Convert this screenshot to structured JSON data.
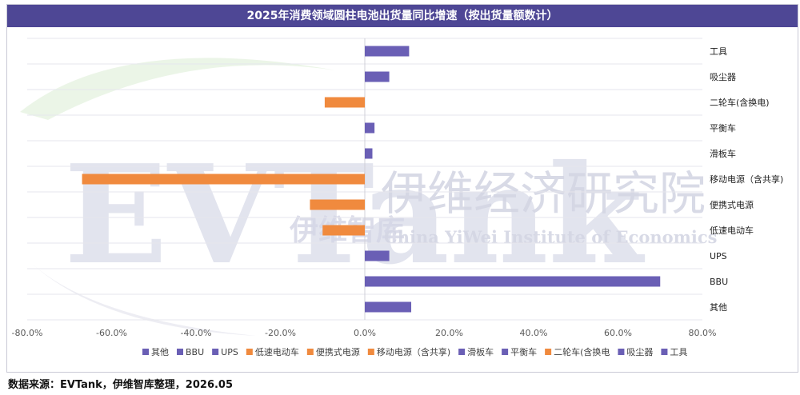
{
  "chart_title": "2025年消费领域圆柱电池出货量同比增速（按出货量额数计）",
  "footer": "数据来源：EVTank，伊维智库整理，2026.05",
  "watermark": {
    "logo": "EVTank",
    "cn": "伊维经济研究院",
    "en": "China YiWei Institute of Economics",
    "small_cn": "伊维智库"
  },
  "colors": {
    "title_bg": "#4e4795",
    "purple": "#6a5fb5",
    "orange": "#f08a3e",
    "grid": "#e6e6ec",
    "axis_text": "#595959"
  },
  "chart_data": {
    "type": "bar",
    "orientation": "horizontal",
    "title": "2025年消费领域圆柱电池出货量同比增速（按出货量额数计）",
    "categories": [
      "工具",
      "吸尘器",
      "二轮车(含换电)",
      "平衡车",
      "滑板车",
      "移动电源（含共享)",
      "便携式电源",
      "低速电动车",
      "UPS",
      "BBU",
      "其他"
    ],
    "values": [
      10.5,
      5.8,
      -9.5,
      2.3,
      1.8,
      -67.0,
      -13.0,
      -10.0,
      5.8,
      70.0,
      11.0
    ],
    "unit": "%",
    "xlim": [
      -80,
      80
    ],
    "x_ticks": [
      -80,
      -60,
      -40,
      -20,
      0,
      20,
      40,
      60,
      80
    ],
    "x_tick_labels": [
      "-80.0%",
      "-60.0%",
      "-40.0%",
      "-20.0%",
      "0.0%",
      "20.0%",
      "40.0%",
      "60.0%",
      "80.0%"
    ],
    "grid": true,
    "legend_position": "bottom",
    "legend": [
      {
        "label": "其他",
        "color": "#6a5fb5"
      },
      {
        "label": "BBU",
        "color": "#6a5fb5"
      },
      {
        "label": "UPS",
        "color": "#6a5fb5"
      },
      {
        "label": "低速电动车",
        "color": "#f08a3e"
      },
      {
        "label": "便携式电源",
        "color": "#f08a3e"
      },
      {
        "label": "移动电源（含共享)",
        "color": "#f08a3e"
      },
      {
        "label": "滑板车",
        "color": "#6a5fb5"
      },
      {
        "label": "平衡车",
        "color": "#6a5fb5"
      },
      {
        "label": "二轮车(含换电",
        "color": "#f08a3e"
      },
      {
        "label": "吸尘器",
        "color": "#6a5fb5"
      },
      {
        "label": "工具",
        "color": "#6a5fb5"
      }
    ]
  }
}
